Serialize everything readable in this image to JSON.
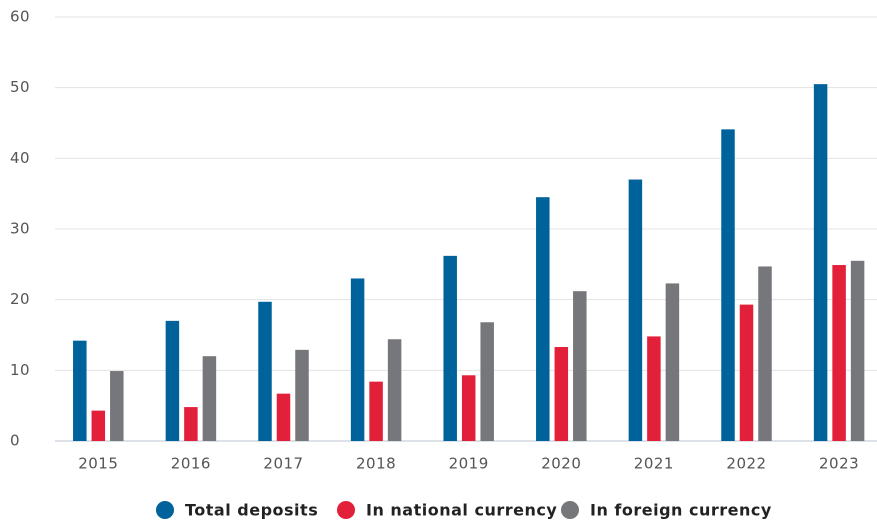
{
  "chart_data": {
    "type": "bar",
    "categories": [
      "2015",
      "2016",
      "2017",
      "2018",
      "2019",
      "2020",
      "2021",
      "2022",
      "2023"
    ],
    "series": [
      {
        "name": "Total deposits",
        "color": "#00629b",
        "values": [
          14.2,
          17.0,
          19.7,
          23.0,
          26.2,
          34.5,
          37.0,
          44.1,
          50.5
        ]
      },
      {
        "name": "In national currency",
        "color": "#e3203a",
        "values": [
          4.3,
          4.8,
          6.7,
          8.4,
          9.3,
          13.3,
          14.8,
          19.3,
          24.9
        ]
      },
      {
        "name": "In foreign currency",
        "color": "#75777b",
        "values": [
          9.9,
          12.0,
          12.9,
          14.4,
          16.8,
          21.2,
          22.3,
          24.7,
          25.5
        ]
      }
    ],
    "ylim": [
      0,
      60
    ],
    "yticks": [
      0,
      10,
      20,
      30,
      40,
      50,
      60
    ],
    "grid": true,
    "legend": "bottom"
  }
}
